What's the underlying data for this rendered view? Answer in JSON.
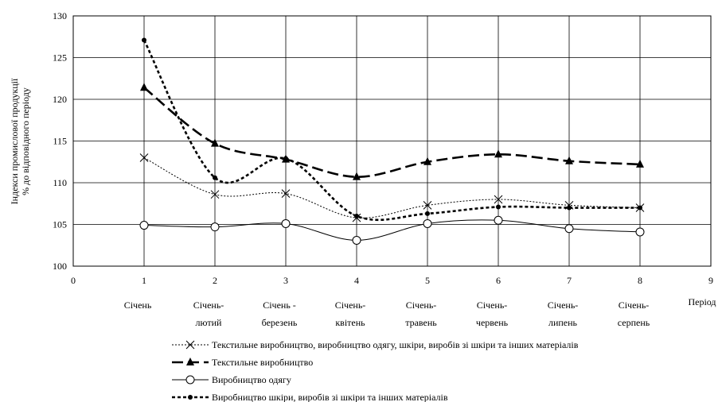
{
  "chart_data": {
    "type": "line",
    "ylabel_lines": [
      "Індекси промислової продукції",
      "% до відповідного періоду"
    ],
    "xlabel": "Період",
    "xlim": [
      0,
      9
    ],
    "ylim": [
      100,
      130
    ],
    "x_ticks": [
      0,
      1,
      2,
      3,
      4,
      5,
      6,
      7,
      8,
      9
    ],
    "y_ticks": [
      100,
      105,
      110,
      115,
      120,
      125,
      130
    ],
    "grid": true,
    "legend_position": "bottom",
    "categories": [
      {
        "x": 1,
        "lines": [
          "Січень"
        ]
      },
      {
        "x": 2,
        "lines": [
          "Січень-",
          "лютий"
        ]
      },
      {
        "x": 3,
        "lines": [
          "Січень -",
          "березень"
        ]
      },
      {
        "x": 4,
        "lines": [
          "Січень-",
          "квітень"
        ]
      },
      {
        "x": 5,
        "lines": [
          "Січень-",
          "травень"
        ]
      },
      {
        "x": 6,
        "lines": [
          "Січень-",
          "червень"
        ]
      },
      {
        "x": 7,
        "lines": [
          "Січень-",
          "липень"
        ]
      },
      {
        "x": 8,
        "lines": [
          "Січень-",
          "серпень"
        ]
      }
    ],
    "x": [
      1,
      2,
      3,
      4,
      5,
      6,
      7,
      8
    ],
    "series": [
      {
        "name": "Текстильне виробництво, виробництво одягу, шкіри, виробів зі шкіри та інших матеріалів",
        "values": [
          113.0,
          108.6,
          108.7,
          105.8,
          107.3,
          108.0,
          107.3,
          107.0
        ],
        "color": "#000000",
        "line": "dotted",
        "marker": "x"
      },
      {
        "name": "Текстильне виробництво",
        "values": [
          121.4,
          114.7,
          112.8,
          110.7,
          112.5,
          113.4,
          112.6,
          112.2
        ],
        "color": "#000000",
        "line": "long-dash",
        "marker": "triangle"
      },
      {
        "name": "Виробництво одягу",
        "values": [
          104.9,
          104.7,
          105.1,
          103.1,
          105.1,
          105.5,
          104.5,
          104.1
        ],
        "color": "#000000",
        "line": "solid",
        "marker": "open-circle"
      },
      {
        "name": "Виробництво шкіри, виробів зі шкіри та інших матеріалів",
        "values": [
          127.1,
          110.6,
          112.9,
          106.0,
          106.3,
          107.1,
          107.0,
          107.0
        ],
        "color": "#000000",
        "line": "short-dash",
        "marker": "dot"
      }
    ]
  }
}
